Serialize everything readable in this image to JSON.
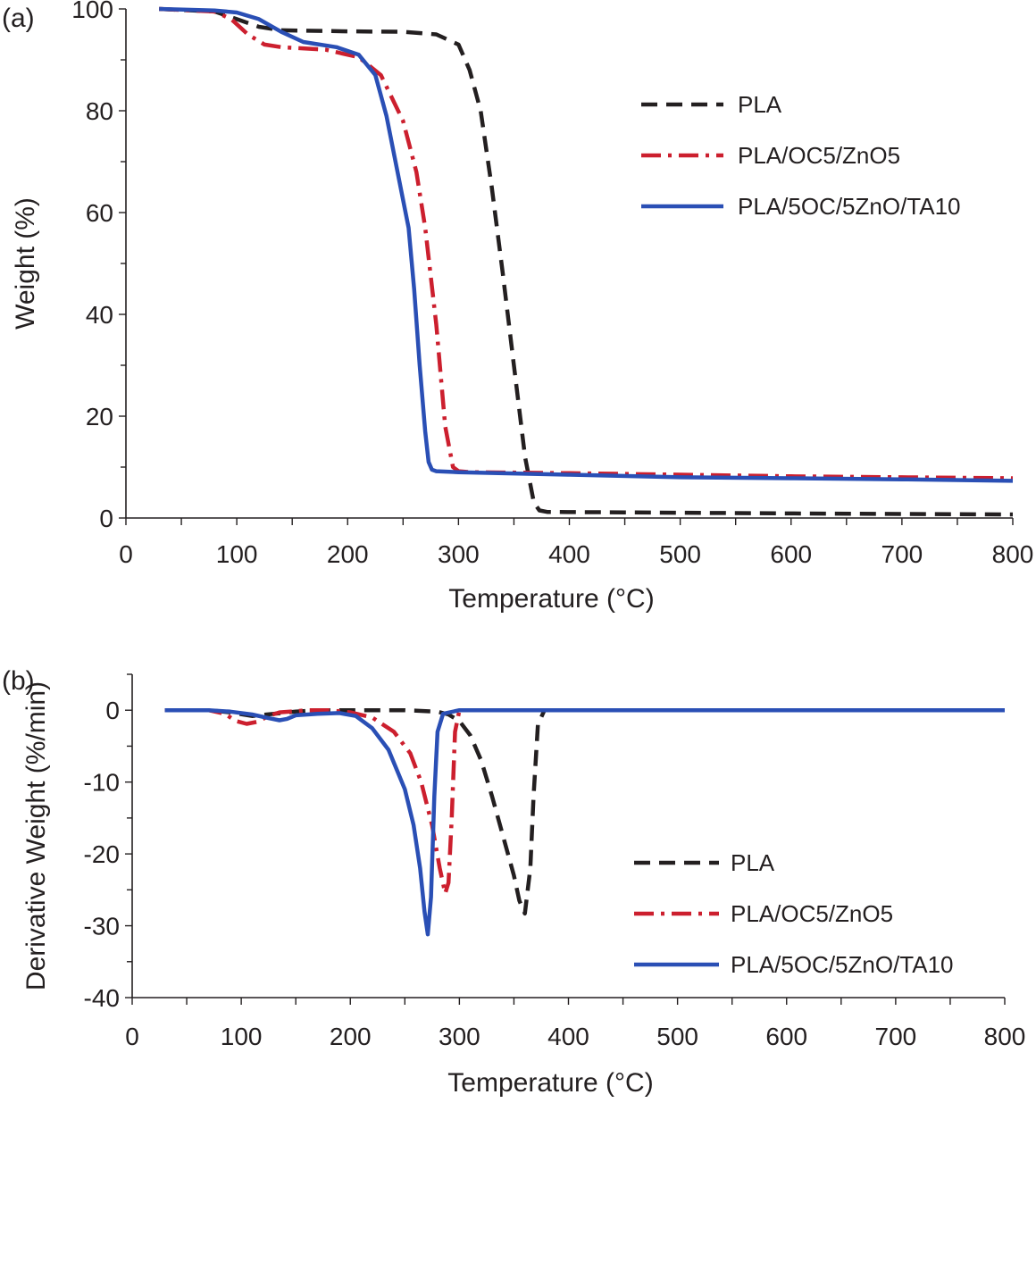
{
  "chart_data": [
    {
      "panel_label": "(a)",
      "type": "line",
      "xlabel": "Temperature (°C)",
      "ylabel": "Weight (%)",
      "xlim": [
        0,
        800
      ],
      "ylim": [
        0,
        100
      ],
      "xticks": [
        "0",
        "100",
        "200",
        "300",
        "400",
        "500",
        "600",
        "700",
        "800"
      ],
      "xtick_values": [
        0,
        100,
        200,
        300,
        400,
        500,
        600,
        700,
        800
      ],
      "yticks": [
        "0",
        "20",
        "40",
        "60",
        "80",
        "100"
      ],
      "ytick_values": [
        0,
        20,
        40,
        60,
        80,
        100
      ],
      "grid": false,
      "legend_position": "top-right",
      "series": [
        {
          "name": "PLA",
          "color": "#231f20",
          "style": "dashed",
          "x": [
            30,
            80,
            100,
            120,
            140,
            200,
            250,
            280,
            300,
            310,
            320,
            330,
            340,
            350,
            360,
            368,
            373,
            380,
            450,
            600,
            800
          ],
          "y": [
            100,
            99.5,
            98,
            96.5,
            95.8,
            95.6,
            95.5,
            95,
            93,
            88,
            80,
            65,
            48,
            30,
            12,
            3,
            1.5,
            1.2,
            1.1,
            0.9,
            0.7
          ]
        },
        {
          "name": "PLA/OC5/ZnO5",
          "color": "#cc1f2e",
          "style": "dashdot",
          "x": [
            30,
            80,
            95,
            110,
            125,
            140,
            180,
            210,
            230,
            250,
            262,
            270,
            280,
            288,
            295,
            300,
            310,
            400,
            500,
            600,
            700,
            800
          ],
          "y": [
            100,
            99.5,
            98,
            95,
            93,
            92.5,
            92,
            90.5,
            87,
            78,
            68,
            57,
            38,
            18,
            10,
            9.2,
            9,
            8.8,
            8.5,
            8.2,
            8,
            7.8
          ]
        },
        {
          "name": "PLA/5OC/5ZnO/TA10",
          "color": "#2a4fb5",
          "style": "solid",
          "x": [
            30,
            80,
            100,
            120,
            140,
            160,
            190,
            210,
            225,
            235,
            245,
            255,
            260,
            265,
            270,
            273,
            276,
            280,
            300,
            400,
            500,
            600,
            700,
            800
          ],
          "y": [
            100,
            99.7,
            99.3,
            98,
            95.5,
            93.5,
            92.5,
            91,
            87,
            79,
            68,
            57,
            45,
            30,
            17,
            11,
            9.5,
            9.2,
            9,
            8.5,
            8,
            7.8,
            7.6,
            7.3
          ]
        }
      ]
    },
    {
      "panel_label": "(b)",
      "type": "line",
      "xlabel": "Temperature (°C)",
      "ylabel": "Derivative Weight (%/min)",
      "xlim": [
        0,
        800
      ],
      "ylim": [
        -40,
        5
      ],
      "xticks": [
        "0",
        "100",
        "200",
        "300",
        "400",
        "500",
        "600",
        "700",
        "800"
      ],
      "xtick_values": [
        0,
        100,
        200,
        300,
        400,
        500,
        600,
        700,
        800
      ],
      "yticks": [
        "0",
        "-10",
        "-20",
        "-30",
        "-40"
      ],
      "ytick_values": [
        0,
        -10,
        -20,
        -30,
        -40
      ],
      "grid": false,
      "legend_position": "center-right",
      "series": [
        {
          "name": "PLA",
          "color": "#231f20",
          "style": "dashed",
          "x": [
            30,
            70,
            90,
            110,
            130,
            150,
            170,
            200,
            250,
            280,
            290,
            300,
            310,
            320,
            330,
            340,
            350,
            355,
            360,
            365,
            368,
            372,
            378,
            400,
            600,
            800
          ],
          "y": [
            0,
            0,
            -0.3,
            -0.8,
            -0.5,
            -0.2,
            0,
            0,
            0,
            -0.2,
            -0.6,
            -1.5,
            -3.5,
            -7,
            -12,
            -17.5,
            -23,
            -26.5,
            -28.3,
            -22,
            -12,
            -2,
            0,
            0,
            0,
            0
          ]
        },
        {
          "name": "PLA/OC5/ZnO5",
          "color": "#cc1f2e",
          "style": "dashdot",
          "x": [
            30,
            70,
            85,
            95,
            105,
            115,
            125,
            135,
            145,
            160,
            180,
            200,
            220,
            240,
            255,
            265,
            275,
            282,
            287,
            290,
            293,
            296,
            300,
            320,
            400,
            800
          ],
          "y": [
            0,
            0,
            -0.5,
            -1.5,
            -1.9,
            -1.6,
            -0.8,
            -0.3,
            -0.2,
            0,
            0,
            -0.3,
            -1,
            -3,
            -6,
            -10,
            -16,
            -22,
            -25.5,
            -24,
            -15,
            -3,
            0,
            0,
            0,
            0
          ]
        },
        {
          "name": "PLA/5OC/5ZnO/TA10",
          "color": "#2a4fb5",
          "style": "solid",
          "x": [
            30,
            70,
            90,
            110,
            125,
            135,
            142,
            150,
            170,
            190,
            205,
            220,
            235,
            250,
            258,
            264,
            268,
            271,
            274,
            277,
            280,
            285,
            300,
            400,
            600,
            800
          ],
          "y": [
            0,
            0,
            -0.2,
            -0.6,
            -1.1,
            -1.4,
            -1.2,
            -0.7,
            -0.5,
            -0.4,
            -0.8,
            -2.5,
            -5.5,
            -11,
            -16,
            -22,
            -28,
            -31.2,
            -26,
            -12,
            -3,
            -0.5,
            0,
            0,
            0,
            0
          ]
        }
      ]
    }
  ]
}
